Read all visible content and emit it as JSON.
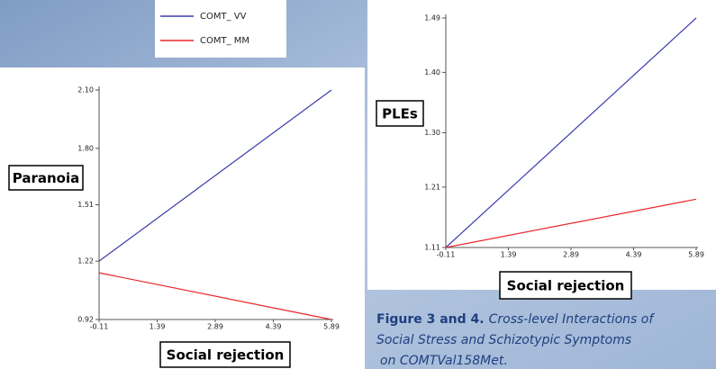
{
  "legend": [
    {
      "name": "COMT_ VV",
      "color": "#3b3bab"
    },
    {
      "name": "COMT_ MM",
      "color": "#e8262a"
    }
  ],
  "caption": {
    "label": "Figure 3 and 4.",
    "lines": [
      "Cross-level Interactions of",
      "Social Stress and Schizotypic Symptoms",
      "on COMTVal158Met."
    ]
  },
  "chart_data": [
    {
      "type": "line",
      "y_label": "Paranoia",
      "x_label": "Social rejection",
      "x": [
        -0.11,
        5.89
      ],
      "xlim": [
        -0.11,
        5.89
      ],
      "xticks": [
        -0.11,
        1.39,
        2.89,
        4.39,
        5.89
      ],
      "ylim": [
        0.92,
        2.1
      ],
      "yticks": [
        0.92,
        1.22,
        1.51,
        {
          "value": 1.8,
          "label": "1.80"
        },
        {
          "value": 2.1,
          "label": "2.10"
        }
      ],
      "series": [
        {
          "color": "#3b3bab",
          "values": [
            1.22,
            2.1
          ]
        },
        {
          "color": "#e8262a",
          "values": [
            1.16,
            0.92
          ]
        }
      ]
    },
    {
      "type": "line",
      "y_label": "PLEs",
      "x_label": "Social rejection",
      "x": [
        -0.11,
        5.89
      ],
      "xlim": [
        -0.11,
        5.89
      ],
      "xticks": [
        -0.11,
        1.39,
        2.89,
        4.39,
        5.89
      ],
      "ylim": [
        1.11,
        1.49
      ],
      "yticks": [
        1.11,
        1.21,
        {
          "value": 1.3,
          "label": "1.30"
        },
        {
          "value": 1.4,
          "label": "1.40"
        },
        1.49
      ],
      "series": [
        {
          "color": "#3b3bab",
          "values": [
            1.11,
            1.49
          ]
        },
        {
          "color": "#e8262a",
          "values": [
            1.11,
            1.19
          ]
        }
      ]
    }
  ]
}
